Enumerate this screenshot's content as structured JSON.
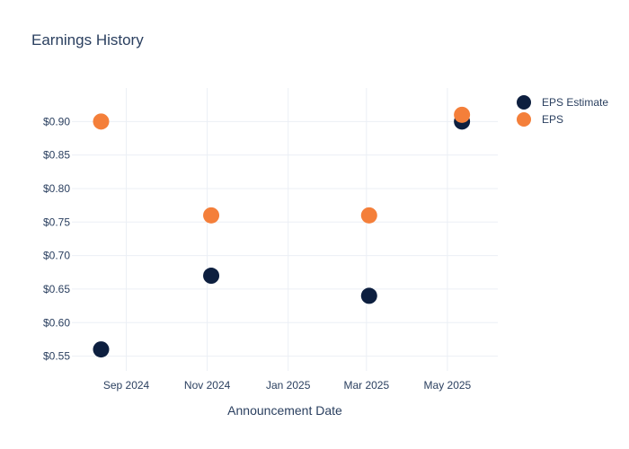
{
  "chart_data": {
    "type": "scatter",
    "title": "Earnings History",
    "xlabel": "Announcement Date",
    "ylabel": "",
    "x_ticks": [
      {
        "date": "2024-09-01",
        "label": "Sep 2024"
      },
      {
        "date": "2024-11-01",
        "label": "Nov 2024"
      },
      {
        "date": "2025-01-01",
        "label": "Jan 2025"
      },
      {
        "date": "2025-03-01",
        "label": "Mar 2025"
      },
      {
        "date": "2025-05-01",
        "label": "May 2025"
      }
    ],
    "x_range": [
      "2024-07-22",
      "2025-06-08"
    ],
    "ylim": [
      0.528,
      0.95
    ],
    "y_ticks": [
      {
        "value": 0.55,
        "label": "$0.55"
      },
      {
        "value": 0.6,
        "label": "$0.60"
      },
      {
        "value": 0.65,
        "label": "$0.65"
      },
      {
        "value": 0.7,
        "label": "$0.70"
      },
      {
        "value": 0.75,
        "label": "$0.75"
      },
      {
        "value": 0.8,
        "label": "$0.80"
      },
      {
        "value": 0.85,
        "label": "$0.85"
      },
      {
        "value": 0.9,
        "label": "$0.90"
      }
    ],
    "grid": true,
    "legend_position": "top-right",
    "series": [
      {
        "name": "EPS Estimate",
        "color": "#0d1f3f",
        "points": [
          {
            "x": "2024-08-13",
            "y": 0.56
          },
          {
            "x": "2024-11-04",
            "y": 0.67
          },
          {
            "x": "2025-03-03",
            "y": 0.64
          },
          {
            "x": "2025-05-12",
            "y": 0.9
          }
        ]
      },
      {
        "name": "EPS",
        "color": "#f47f3a",
        "points": [
          {
            "x": "2024-08-13",
            "y": 0.9
          },
          {
            "x": "2024-11-04",
            "y": 0.76
          },
          {
            "x": "2025-03-03",
            "y": 0.76
          },
          {
            "x": "2025-05-12",
            "y": 0.91
          }
        ]
      }
    ]
  }
}
